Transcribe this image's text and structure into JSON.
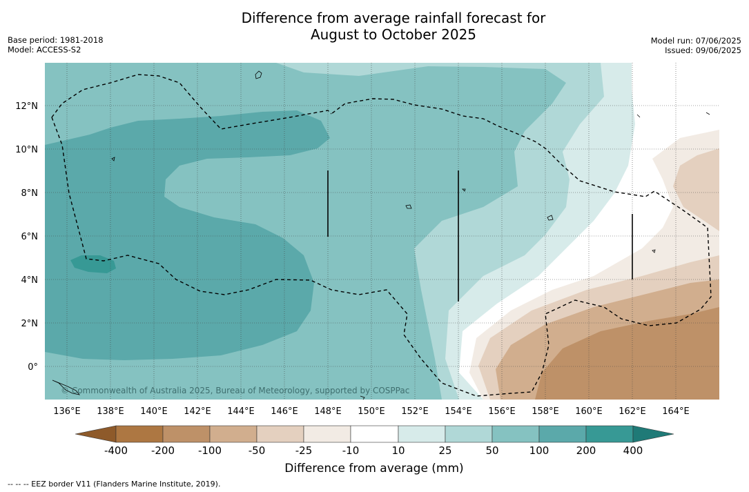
{
  "title_line1": "Difference from average rainfall forecast for",
  "title_line2": "August to October 2025",
  "base_period": "Base period: 1981-2018",
  "model": "Model: ACCESS-S2",
  "model_run": "Model run: 07/06/2025",
  "issued": "Issued: 09/06/2025",
  "credit": "© Commonwealth of Australia 2025, Bureau of Meteorology, supported by COSPPac",
  "footnote": "--  --  -- EEZ border V11 (Flanders Marine Institute, 2019).",
  "lon_ticks": [
    "136°E",
    "138°E",
    "140°E",
    "142°E",
    "144°E",
    "146°E",
    "148°E",
    "150°E",
    "152°E",
    "154°E",
    "156°E",
    "158°E",
    "160°E",
    "162°E",
    "164°E"
  ],
  "lat_ticks": [
    "12°N",
    "10°N",
    "8°N",
    "6°N",
    "4°N",
    "2°N",
    "0°"
  ],
  "colorbar": {
    "title": "Difference from average (mm)",
    "labels": [
      "-400",
      "-200",
      "-100",
      "-50",
      "-25",
      "-10",
      "10",
      "25",
      "50",
      "100",
      "200",
      "400"
    ],
    "colors": {
      "below_400": "#8e5a2a",
      "c_m400_m200": "#ad7742",
      "c_m200_m100": "#be9168",
      "c_m100_m50": "#d1ae8e",
      "c_m50_m25": "#e4d0bf",
      "c_m25_m10": "#f2ebe4",
      "c_m10_10": "#ffffff",
      "c_10_25": "#d7ebea",
      "c_25_50": "#b0d8d7",
      "c_50_100": "#85c2c1",
      "c_100_200": "#5ba9aa",
      "c_200_400": "#379995",
      "above_400": "#1f7a77"
    }
  }
}
